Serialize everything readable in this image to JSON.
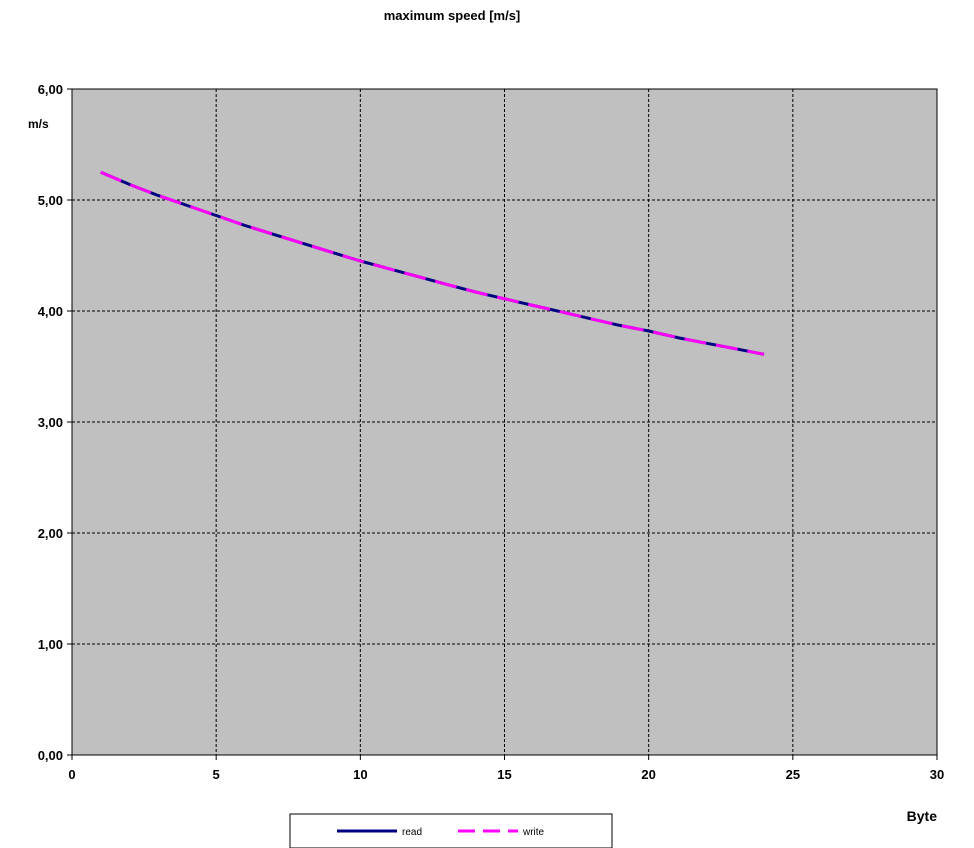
{
  "chart_data": {
    "type": "line",
    "title": "maximum speed [m/s]",
    "xlabel": "Byte",
    "ylabel": "m/s",
    "xlim": [
      0,
      30
    ],
    "ylim": [
      0,
      6
    ],
    "x_ticks": [
      0,
      5,
      10,
      15,
      20,
      25,
      30
    ],
    "x_tick_labels": [
      "0",
      "5",
      "10",
      "15",
      "20",
      "25",
      "30"
    ],
    "y_ticks": [
      0,
      1,
      2,
      3,
      4,
      5,
      6
    ],
    "y_tick_labels": [
      "0,00",
      "1,00",
      "2,00",
      "3,00",
      "4,00",
      "5,00",
      "6,00"
    ],
    "grid": true,
    "legend_position": "bottom-center",
    "plot_background": "#c0c0c0",
    "x": [
      1,
      2,
      3,
      4,
      5,
      6,
      7,
      8,
      9,
      10,
      11,
      12,
      13,
      14,
      15,
      16,
      17,
      18,
      19,
      20,
      21,
      22,
      23,
      24
    ],
    "series": [
      {
        "name": "read",
        "color": "#000080",
        "style": "solid",
        "values": [
          5.25,
          5.14,
          5.04,
          4.95,
          4.86,
          4.77,
          4.69,
          4.61,
          4.53,
          4.45,
          4.38,
          4.31,
          4.24,
          4.17,
          4.11,
          4.05,
          3.99,
          3.93,
          3.87,
          3.82,
          3.76,
          3.71,
          3.66,
          3.61
        ]
      },
      {
        "name": "write",
        "color": "#ff00ff",
        "style": "dashed",
        "values": [
          5.25,
          5.14,
          5.04,
          4.95,
          4.86,
          4.77,
          4.69,
          4.61,
          4.53,
          4.45,
          4.38,
          4.31,
          4.24,
          4.17,
          4.11,
          4.05,
          3.99,
          3.93,
          3.87,
          3.82,
          3.76,
          3.71,
          3.66,
          3.61
        ]
      }
    ]
  }
}
